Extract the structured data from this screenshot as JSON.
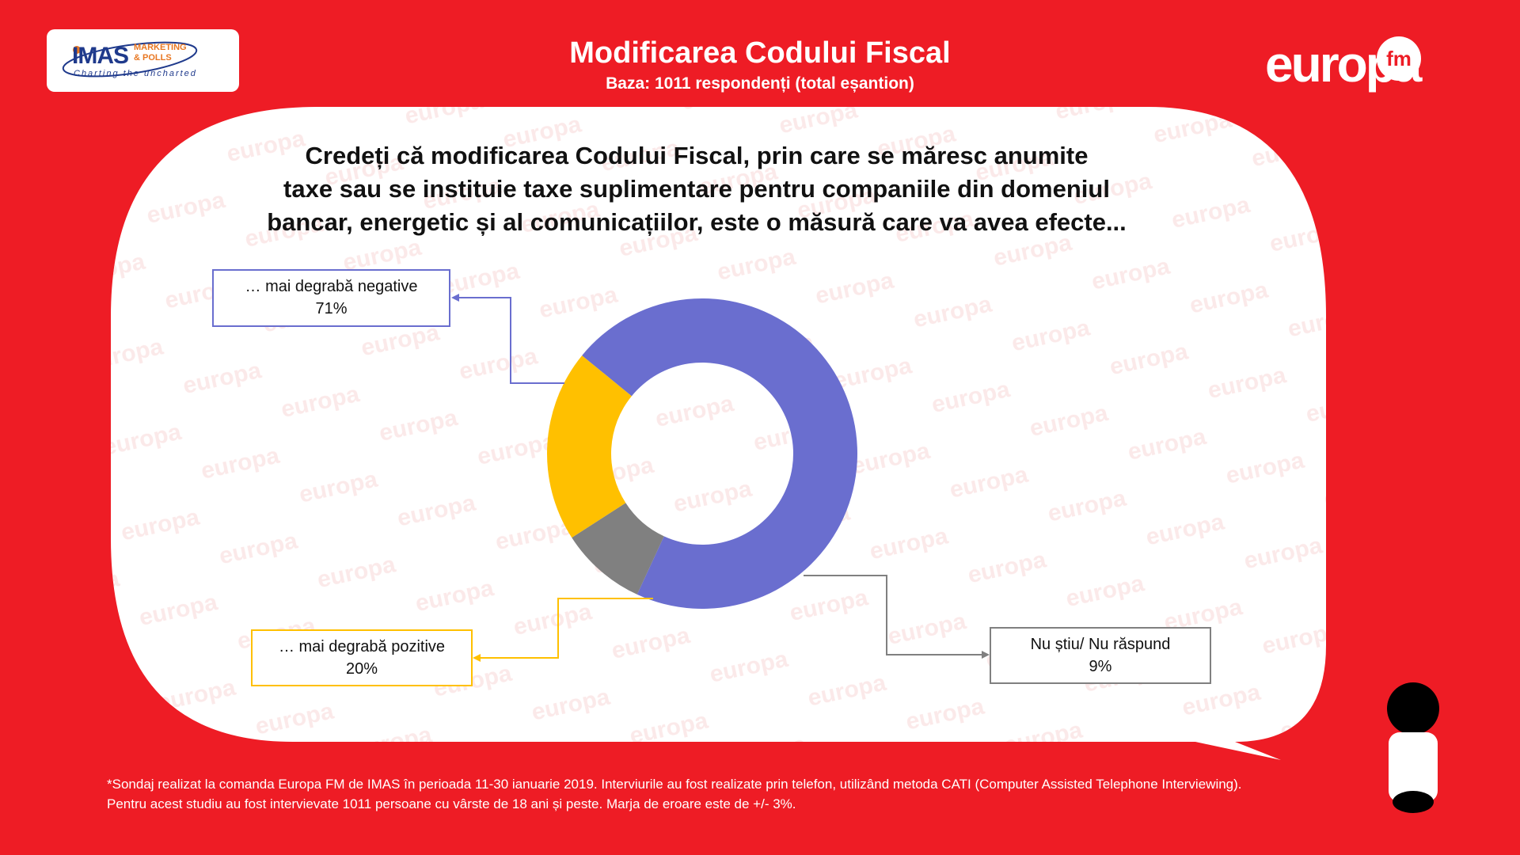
{
  "header": {
    "title": "Modificarea Codului Fiscal",
    "subtitle": "Baza: 1011 respondenți (total eșantion)"
  },
  "logos": {
    "imas_main": "IMAS",
    "imas_sub_1": "MARKETING",
    "imas_sub_2": "& POLLS",
    "imas_tagline": "Charting the uncharted",
    "europa": "europa",
    "europa_fm": "fm",
    "watermark": "europa"
  },
  "question": {
    "line1": "Credeți că modificarea Codului Fiscal, prin care se măresc anumite",
    "line2": "taxe sau se instituie taxe suplimentare pentru companiile din domeniul",
    "line3": "bancar, energetic și al comunicațiilor, este o măsură care va avea efecte..."
  },
  "chart_data": {
    "type": "pie",
    "donut": true,
    "slices": [
      {
        "label": "… mai degrabă negative",
        "value": 71,
        "value_label": "71%",
        "color": "#6a6ecf"
      },
      {
        "label": "Nu știu/ Nu răspund",
        "value": 9,
        "value_label": "9%",
        "color": "#808080"
      },
      {
        "label": "… mai degrabă pozitive",
        "value": 20,
        "value_label": "20%",
        "color": "#ffc000"
      }
    ]
  },
  "footnote": {
    "line1": "*Sondaj realizat la comanda Europa FM de IMAS în perioada 11-30 ianuarie 2019. Interviurile au fost realizate prin telefon, utilizând metoda CATI (Computer Assisted Telephone Interviewing).",
    "line2": "Pentru acest studiu au fost intervievate 1011 persoane cu vârste de 18 ani și peste. Marja de eroare este de +/- 3%."
  },
  "colors": {
    "background": "#ee1c25",
    "bubble": "#ffffff",
    "negative": "#6a6ecf",
    "positive": "#ffc000",
    "neutral": "#808080"
  }
}
